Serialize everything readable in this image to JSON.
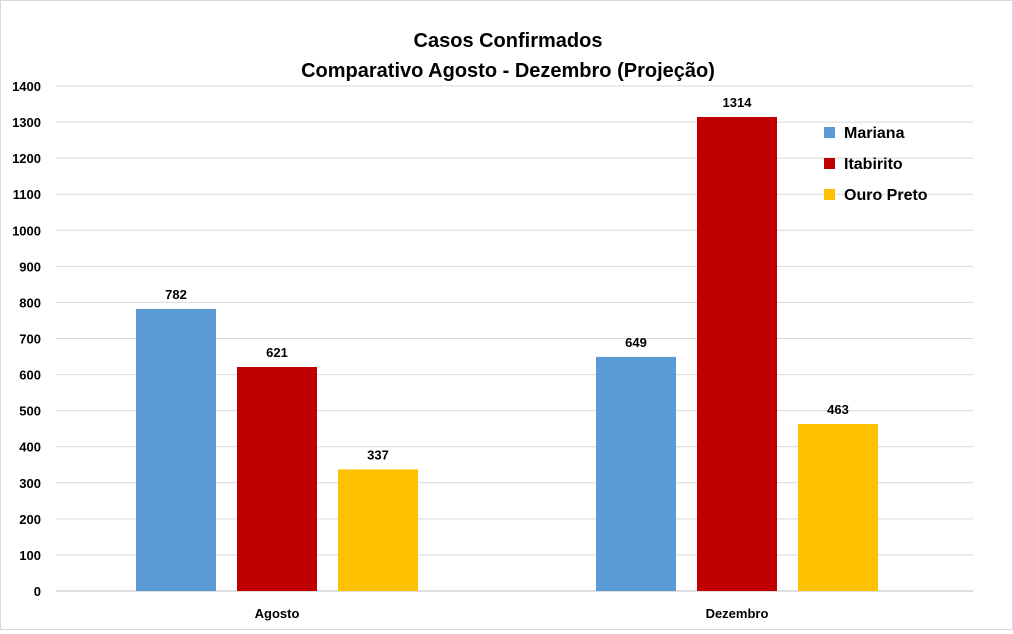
{
  "chart_data": {
    "type": "bar",
    "title": "Casos Confirmados",
    "subtitle": "Comparativo Agosto - Dezembro (Projeção)",
    "categories": [
      "Agosto",
      "Dezembro"
    ],
    "series": [
      {
        "name": "Mariana",
        "values": [
          782,
          649
        ],
        "color": "#5b9bd5"
      },
      {
        "name": "Itabirito",
        "values": [
          621,
          1314
        ],
        "color": "#c00000"
      },
      {
        "name": "Ouro Preto",
        "values": [
          337,
          463
        ],
        "color": "#ffc000"
      }
    ],
    "ylim": [
      0,
      1400
    ],
    "yticks": [
      0,
      100,
      200,
      300,
      400,
      500,
      600,
      700,
      800,
      900,
      1000,
      1100,
      1200,
      1300,
      1400
    ],
    "grid": true,
    "legend_position": "top-right",
    "xlabel": "",
    "ylabel": ""
  }
}
